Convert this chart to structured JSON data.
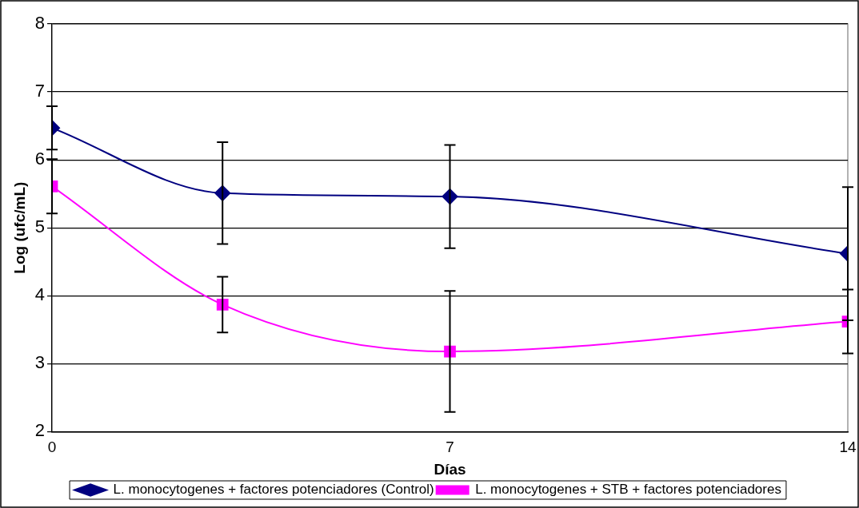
{
  "chart_data": {
    "type": "line",
    "xlabel": "Días",
    "ylabel": "Log (ufc/mL)",
    "x": [
      0,
      3,
      7,
      14
    ],
    "xlim": [
      0,
      14
    ],
    "xticks": [
      0,
      7,
      14
    ],
    "ylim": [
      2,
      8
    ],
    "yticks": [
      2,
      3,
      4,
      5,
      6,
      7,
      8
    ],
    "grid": "y",
    "legend": "bottom",
    "series": [
      {
        "name": "L. monocytogenes + factores potenciadores (Control)",
        "color": "#000080",
        "marker": "diamond",
        "values": [
          6.47,
          5.51,
          5.46,
          4.62
        ],
        "errors": [
          0.32,
          0.75,
          0.76,
          0.98
        ]
      },
      {
        "name": "L. monocytogenes + STB + factores potenciadores",
        "color": "#ff00ff",
        "marker": "square",
        "values": [
          5.61,
          3.87,
          3.18,
          3.62
        ],
        "errors": [
          0.4,
          0.41,
          0.89,
          0.47
        ]
      }
    ]
  }
}
